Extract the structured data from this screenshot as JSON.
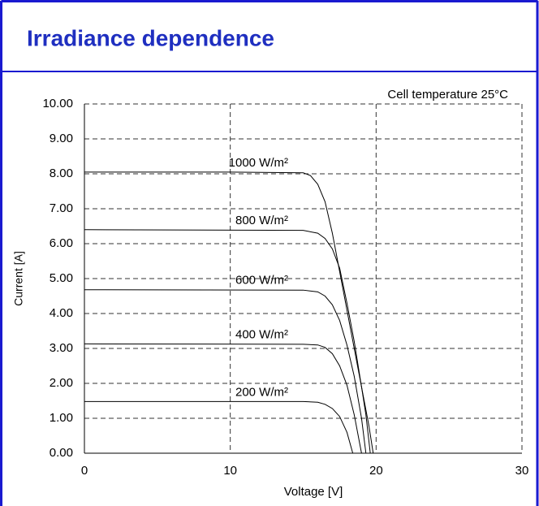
{
  "chart_data": {
    "type": "line",
    "title": "Irradiance dependence",
    "annotation": "Cell temperature 25°C",
    "xlabel": "Voltage [V]",
    "ylabel": "Current [A]",
    "xlim": [
      0,
      30
    ],
    "xticks": [
      0,
      10,
      20,
      30
    ],
    "ylim": [
      0,
      10
    ],
    "yticks": [
      {
        "value": 0,
        "label": "0.00"
      },
      {
        "value": 1,
        "label": "1.00"
      },
      {
        "value": 2,
        "label": "2.00"
      },
      {
        "value": 3,
        "label": "3.00"
      },
      {
        "value": 4,
        "label": "4.00"
      },
      {
        "value": 5,
        "label": "5.00"
      },
      {
        "value": 6,
        "label": "6.00"
      },
      {
        "value": 7,
        "label": "7.00"
      },
      {
        "value": 8,
        "label": "8.00"
      },
      {
        "value": 9,
        "label": "9.00"
      },
      {
        "value": 10,
        "label": "10.00"
      }
    ],
    "grid": true,
    "series": [
      {
        "name": "1000 W/m²",
        "color": "#000000",
        "x": [
          0,
          10,
          15,
          15.5,
          16,
          16.5,
          17,
          17.5,
          18,
          18.5,
          19,
          19.5,
          19.8
        ],
        "values": [
          8.05,
          8.05,
          8.03,
          7.95,
          7.7,
          7.2,
          6.3,
          5.2,
          4.1,
          3.0,
          1.9,
          0.8,
          0
        ]
      },
      {
        "name": "800 W/m²",
        "color": "#000000",
        "x": [
          0,
          15,
          16,
          16.5,
          17,
          17.5,
          18,
          18.5,
          19,
          19.3,
          19.6
        ],
        "values": [
          6.4,
          6.38,
          6.3,
          6.15,
          5.85,
          5.3,
          4.3,
          3.2,
          1.9,
          1.1,
          0
        ]
      },
      {
        "name": "600 W/m²",
        "color": "#000000",
        "x": [
          0,
          15,
          16,
          16.5,
          17,
          17.5,
          18,
          18.5,
          19,
          19.3
        ],
        "values": [
          4.68,
          4.67,
          4.62,
          4.5,
          4.25,
          3.8,
          3.1,
          2.2,
          1.0,
          0
        ]
      },
      {
        "name": "400 W/m²",
        "color": "#000000",
        "x": [
          0,
          15,
          16,
          16.5,
          17,
          17.5,
          18,
          18.5,
          19
        ],
        "values": [
          3.13,
          3.12,
          3.1,
          3.03,
          2.85,
          2.5,
          1.95,
          1.1,
          0
        ]
      },
      {
        "name": "200 W/m²",
        "color": "#000000",
        "x": [
          0,
          15,
          16,
          16.5,
          17,
          17.5,
          18,
          18.4
        ],
        "values": [
          1.48,
          1.48,
          1.46,
          1.4,
          1.28,
          1.05,
          0.6,
          0
        ]
      }
    ]
  }
}
